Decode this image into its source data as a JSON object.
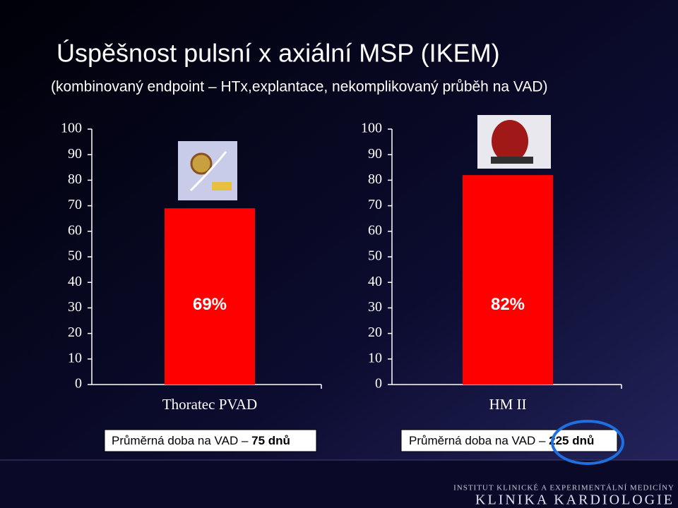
{
  "title": "Úspěšnost  pulsní  x  axiální  MSP (IKEM)",
  "subtitle": "(kombinovaný endpoint – HTx,explantace, nekomplikovaný průběh na VAD)",
  "chart_data": [
    {
      "type": "bar",
      "categories": [
        "Thoratec PVAD"
      ],
      "values": [
        69
      ],
      "value_labels": [
        "69%"
      ],
      "color": "#ff0000",
      "ylim": [
        0,
        100
      ],
      "yticks": [
        0,
        10,
        20,
        30,
        40,
        50,
        60,
        70,
        80,
        90,
        100
      ]
    },
    {
      "type": "bar",
      "categories": [
        "HM II"
      ],
      "values": [
        82
      ],
      "value_labels": [
        "82%"
      ],
      "color": "#ff0000",
      "ylim": [
        0,
        100
      ],
      "yticks": [
        0,
        10,
        20,
        30,
        40,
        50,
        60,
        70,
        80,
        90,
        100
      ]
    }
  ],
  "notes": [
    {
      "text": "Průměrná doba na VAD – ",
      "highlight": "75 dnů"
    },
    {
      "text": "Průměrná doba na VAD – ",
      "highlight": "225 dnů"
    }
  ],
  "footer": {
    "institute": "INSTITUT KLINICKÉ A EXPERIMENTÁLNÍ MEDICÍNY",
    "clinic": "KLINIKA KARDIOLOGIE"
  }
}
